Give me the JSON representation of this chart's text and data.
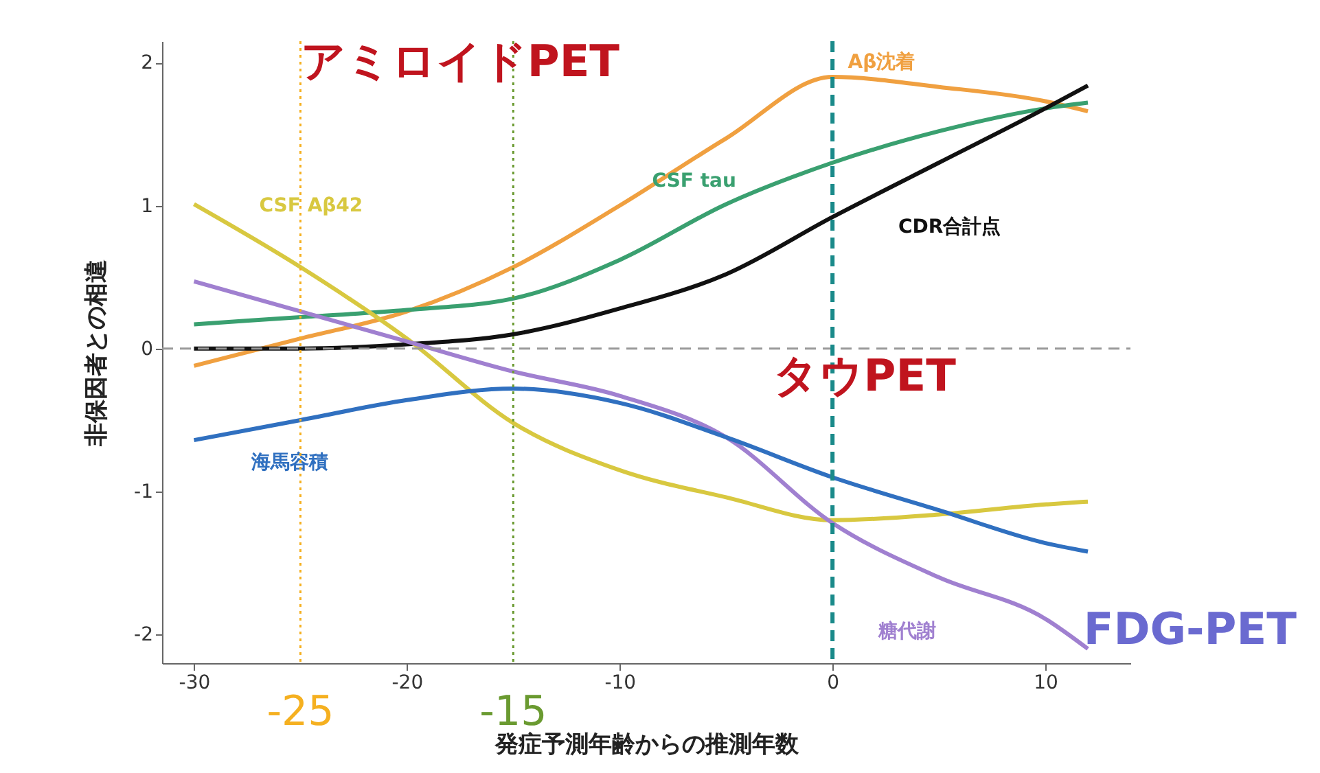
{
  "chart_data": {
    "type": "line",
    "xlabel": "発症予測年齢からの推測年数",
    "ylabel": "非保因者との相違",
    "x": [
      -30,
      -25,
      -20,
      -15,
      -10,
      -5,
      0,
      5,
      10,
      12
    ],
    "series": [
      {
        "name": "Aβ沈着",
        "color": "#f0a040",
        "values": [
          -0.12,
          0.07,
          0.26,
          0.57,
          1.0,
          1.47,
          1.9,
          1.83,
          1.73,
          1.66
        ]
      },
      {
        "name": "CSF tau",
        "color": "#3aa070",
        "values": [
          0.17,
          0.22,
          0.27,
          0.35,
          0.62,
          1.01,
          1.3,
          1.52,
          1.68,
          1.72
        ]
      },
      {
        "name": "CDR合計点",
        "color": "#111111",
        "values": [
          0.0,
          0.0,
          0.03,
          0.1,
          0.28,
          0.52,
          0.92,
          1.3,
          1.68,
          1.84
        ]
      },
      {
        "name": "CSF Aβ42",
        "color": "#d8c840",
        "values": [
          1.01,
          0.57,
          0.07,
          -0.52,
          -0.85,
          -1.04,
          -1.2,
          -1.16,
          -1.09,
          -1.07
        ]
      },
      {
        "name": "糖代謝",
        "color": "#a080d0",
        "values": [
          0.47,
          0.26,
          0.05,
          -0.16,
          -0.33,
          -0.62,
          -1.22,
          -1.6,
          -1.89,
          -2.1
        ]
      },
      {
        "name": "海馬容積",
        "color": "#3070c0",
        "values": [
          -0.64,
          -0.5,
          -0.36,
          -0.28,
          -0.38,
          -0.62,
          -0.9,
          -1.13,
          -1.36,
          -1.42
        ]
      }
    ],
    "xlim": [
      -31.5,
      14
    ],
    "ylim": [
      -2.2,
      2.15
    ],
    "xticks": [
      -30,
      -20,
      -10,
      0,
      10
    ],
    "yticks": [
      -2,
      -1,
      0,
      1,
      2
    ],
    "ref_lines": [
      {
        "axis": "y",
        "value": 0,
        "color": "#999999",
        "line_style": "dashed"
      },
      {
        "axis": "x",
        "value": 0,
        "color": "#1a8a8a",
        "line_style": "dashed"
      },
      {
        "axis": "x",
        "value": -25,
        "label": "-25",
        "color": "#f5b020",
        "line_style": "dotted"
      },
      {
        "axis": "x",
        "value": -15,
        "label": "-15",
        "color": "#6a9a30",
        "line_style": "dotted"
      }
    ],
    "annotations": [
      "アミロイドPET",
      "タウPET",
      "FDG-PET"
    ],
    "grid": false,
    "marker": "none",
    "line_style": "solid"
  }
}
